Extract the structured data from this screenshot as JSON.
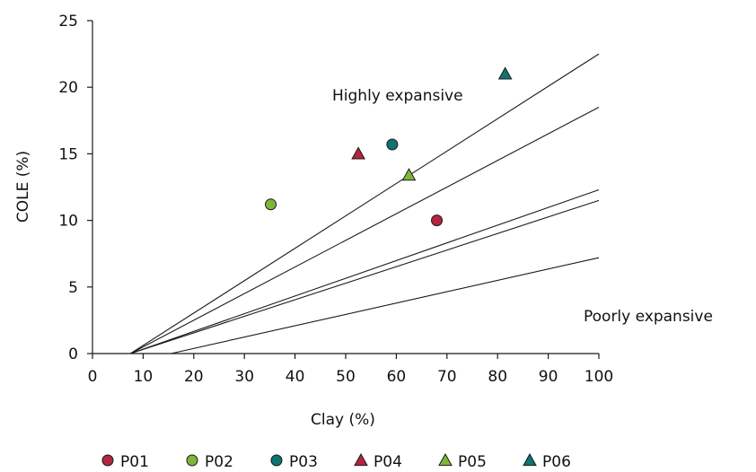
{
  "chart_data": {
    "type": "scatter",
    "xlabel": "Clay (%)",
    "ylabel": "COLE (%)",
    "xlim": [
      0,
      100
    ],
    "ylim": [
      0,
      25
    ],
    "x_ticks": [
      "0",
      "10",
      "20",
      "30",
      "40",
      "50",
      "60",
      "70",
      "80",
      "90",
      "100"
    ],
    "y_ticks": [
      "0",
      "5",
      "10",
      "15",
      "20",
      "25"
    ],
    "grid": false,
    "annotations": [
      "Highly expansive",
      "Poorly expansive"
    ],
    "reference_lines": [
      {
        "x1": 7.5,
        "y1": 0,
        "x2": 100,
        "y2": 22.5
      },
      {
        "x1": 7.5,
        "y1": 0,
        "x2": 100,
        "y2": 18.5
      },
      {
        "x1": 7.5,
        "y1": 0,
        "x2": 100,
        "y2": 12.3
      },
      {
        "x1": 7.5,
        "y1": 0,
        "x2": 100,
        "y2": 11.5
      },
      {
        "x1": 15.5,
        "y1": 0,
        "x2": 100,
        "y2": 7.2
      }
    ],
    "legend_position": "bottom",
    "series": [
      {
        "name": "P01",
        "marker": "circle",
        "color": "#b5243f",
        "x": 68,
        "y": 10
      },
      {
        "name": "P02",
        "marker": "circle",
        "color": "#7fb539",
        "x": 35.2,
        "y": 11.2
      },
      {
        "name": "P03",
        "marker": "circle",
        "color": "#0d7472",
        "x": 59.2,
        "y": 15.7
      },
      {
        "name": "P04",
        "marker": "triangle",
        "color": "#b5243f",
        "x": 52.5,
        "y": 15
      },
      {
        "name": "P05",
        "marker": "triangle",
        "color": "#7fb539",
        "x": 62.5,
        "y": 13.4
      },
      {
        "name": "P06",
        "marker": "triangle",
        "color": "#0d7472",
        "x": 81.5,
        "y": 21
      }
    ]
  }
}
